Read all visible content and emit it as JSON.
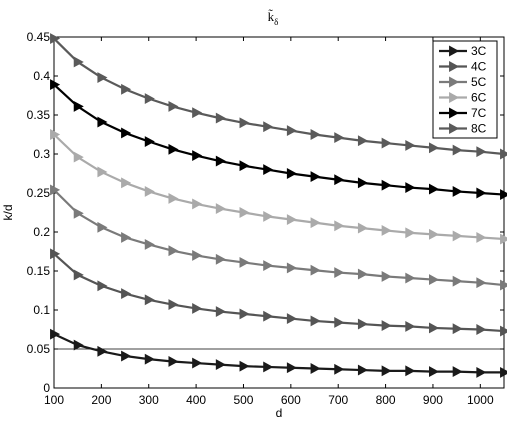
{
  "chart_data": {
    "type": "line",
    "title": "k̃",
    "title_subscript": "δ",
    "xlabel": "d",
    "ylabel": "k/d",
    "xlim": [
      100,
      1050
    ],
    "ylim": [
      0,
      0.45
    ],
    "xticks": [
      100,
      200,
      300,
      400,
      500,
      600,
      700,
      800,
      900,
      1000
    ],
    "xtick_labels": [
      "100",
      "200",
      "300",
      "400",
      "500",
      "600",
      "700",
      "800",
      "900",
      "1000"
    ],
    "yticks": [
      0,
      0.05,
      0.1,
      0.15,
      0.2,
      0.25,
      0.3,
      0.35,
      0.4,
      0.45
    ],
    "ytick_labels": [
      "0",
      "0.05",
      "0.1",
      "0.15",
      "0.2",
      "0.25",
      "0.3",
      "0.35",
      "0.4",
      "0.45"
    ],
    "grid": false,
    "legend_position": "top-right",
    "marker": "triangle-right",
    "reference_lines": [
      {
        "axis": "y",
        "value": 0.05
      }
    ],
    "x": [
      100,
      150,
      200,
      250,
      300,
      350,
      400,
      450,
      500,
      550,
      600,
      650,
      700,
      750,
      800,
      850,
      900,
      950,
      1000,
      1050
    ],
    "series": [
      {
        "name": "3C",
        "color": "#1a1a1a",
        "values": [
          0.069,
          0.055,
          0.047,
          0.041,
          0.037,
          0.034,
          0.032,
          0.03,
          0.028,
          0.027,
          0.026,
          0.025,
          0.024,
          0.023,
          0.022,
          0.022,
          0.021,
          0.021,
          0.02,
          0.02
        ]
      },
      {
        "name": "4C",
        "color": "#555555",
        "values": [
          0.172,
          0.145,
          0.131,
          0.121,
          0.113,
          0.107,
          0.102,
          0.098,
          0.095,
          0.092,
          0.089,
          0.086,
          0.084,
          0.082,
          0.08,
          0.079,
          0.077,
          0.076,
          0.075,
          0.073
        ]
      },
      {
        "name": "5C",
        "color": "#7a7a7a",
        "values": [
          0.254,
          0.224,
          0.206,
          0.193,
          0.184,
          0.176,
          0.17,
          0.165,
          0.161,
          0.157,
          0.154,
          0.151,
          0.148,
          0.146,
          0.143,
          0.141,
          0.139,
          0.137,
          0.135,
          0.132
        ]
      },
      {
        "name": "6C",
        "color": "#aaaaaa",
        "values": [
          0.325,
          0.296,
          0.277,
          0.263,
          0.252,
          0.243,
          0.236,
          0.23,
          0.225,
          0.22,
          0.216,
          0.212,
          0.208,
          0.205,
          0.202,
          0.199,
          0.197,
          0.195,
          0.193,
          0.191
        ]
      },
      {
        "name": "7C",
        "color": "#000000",
        "values": [
          0.389,
          0.361,
          0.341,
          0.327,
          0.316,
          0.306,
          0.298,
          0.291,
          0.285,
          0.28,
          0.275,
          0.271,
          0.267,
          0.263,
          0.26,
          0.257,
          0.255,
          0.252,
          0.25,
          0.248
        ]
      },
      {
        "name": "8C",
        "color": "#5a5a5a",
        "values": [
          0.448,
          0.418,
          0.398,
          0.383,
          0.371,
          0.361,
          0.353,
          0.346,
          0.34,
          0.335,
          0.33,
          0.325,
          0.321,
          0.317,
          0.314,
          0.311,
          0.308,
          0.305,
          0.303,
          0.3
        ]
      }
    ]
  }
}
